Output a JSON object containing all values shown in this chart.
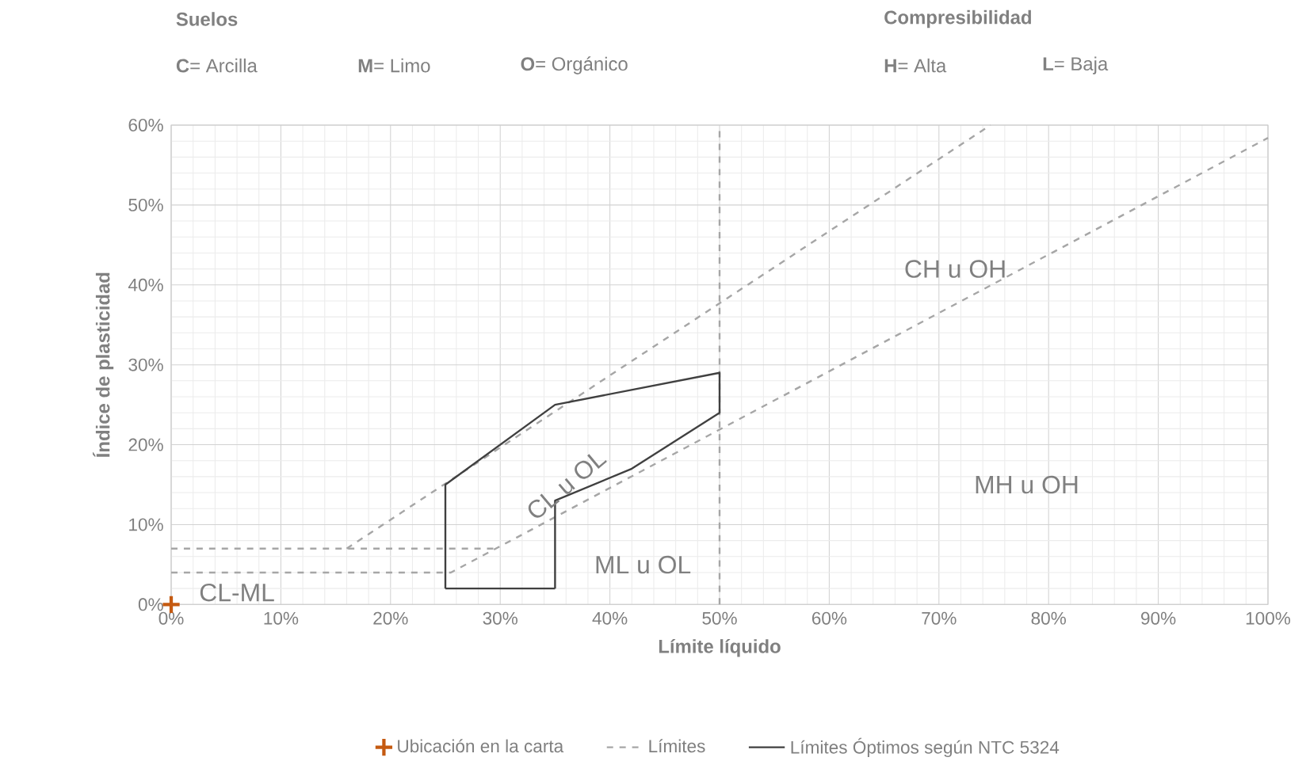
{
  "chart_data": {
    "type": "line",
    "xlabel": "Límite líquido",
    "ylabel": "Índice de plasticidad",
    "xlim": [
      0,
      100
    ],
    "ylim": [
      0,
      60
    ],
    "xticks": [
      {
        "value": 0,
        "label": "0%"
      },
      {
        "value": 10,
        "label": "10%"
      },
      {
        "value": 20,
        "label": "20%"
      },
      {
        "value": 30,
        "label": "30%"
      },
      {
        "value": 40,
        "label": "40%"
      },
      {
        "value": 50,
        "label": "50%"
      },
      {
        "value": 60,
        "label": "60%"
      },
      {
        "value": 70,
        "label": "70%"
      },
      {
        "value": 80,
        "label": "80%"
      },
      {
        "value": 90,
        "label": "90%"
      },
      {
        "value": 100,
        "label": "100%"
      }
    ],
    "yticks": [
      {
        "value": 0,
        "label": "0%"
      },
      {
        "value": 10,
        "label": "10%"
      },
      {
        "value": 20,
        "label": "20%"
      },
      {
        "value": 30,
        "label": "30%"
      },
      {
        "value": 40,
        "label": "40%"
      },
      {
        "value": 50,
        "label": "50%"
      },
      {
        "value": 60,
        "label": "60%"
      }
    ],
    "grid": true,
    "legend": "bottom",
    "series": [
      {
        "name": "Ubicación en la carta",
        "type": "scatter",
        "marker": "cross",
        "color": "#c55a11",
        "x": [
          0
        ],
        "values": [
          0
        ]
      },
      {
        "name": "Límites",
        "line_style": "dashed",
        "color": "#a6a6a6",
        "x": [
          0,
          25.5,
          100
        ],
        "values": [
          4,
          4,
          58.4
        ]
      },
      {
        "line_style": "dashed",
        "color": "#a6a6a6",
        "x": [
          0,
          29.6
        ],
        "values": [
          7,
          7
        ]
      },
      {
        "line_style": "dashed",
        "color": "#a6a6a6",
        "x": [
          16,
          74.7
        ],
        "values": [
          7,
          60
        ]
      },
      {
        "line_style": "dashed",
        "color": "#a6a6a6",
        "x": [
          50,
          50
        ],
        "values": [
          0,
          60
        ]
      },
      {
        "name": "Límites Óptimos según NTC 5324",
        "line_style": "solid",
        "color": "#404040",
        "x": [
          25,
          25,
          35,
          50,
          50,
          42,
          35,
          35
        ],
        "values": [
          2,
          15,
          25,
          29,
          24,
          17,
          13,
          2
        ]
      },
      {
        "line_style": "solid",
        "color": "#404040",
        "x": [
          25,
          35
        ],
        "values": [
          2,
          2
        ]
      }
    ],
    "annotations": [
      "Suelos",
      "**C**= Arcilla",
      "**M**= Limo",
      "**O**= Orgánico",
      "Compresibilidad",
      "**H**= Alta",
      "**L**= Baja",
      "CH u OH",
      "MH u OH",
      "CL u OL",
      "ML u OL",
      "CL-ML"
    ]
  }
}
